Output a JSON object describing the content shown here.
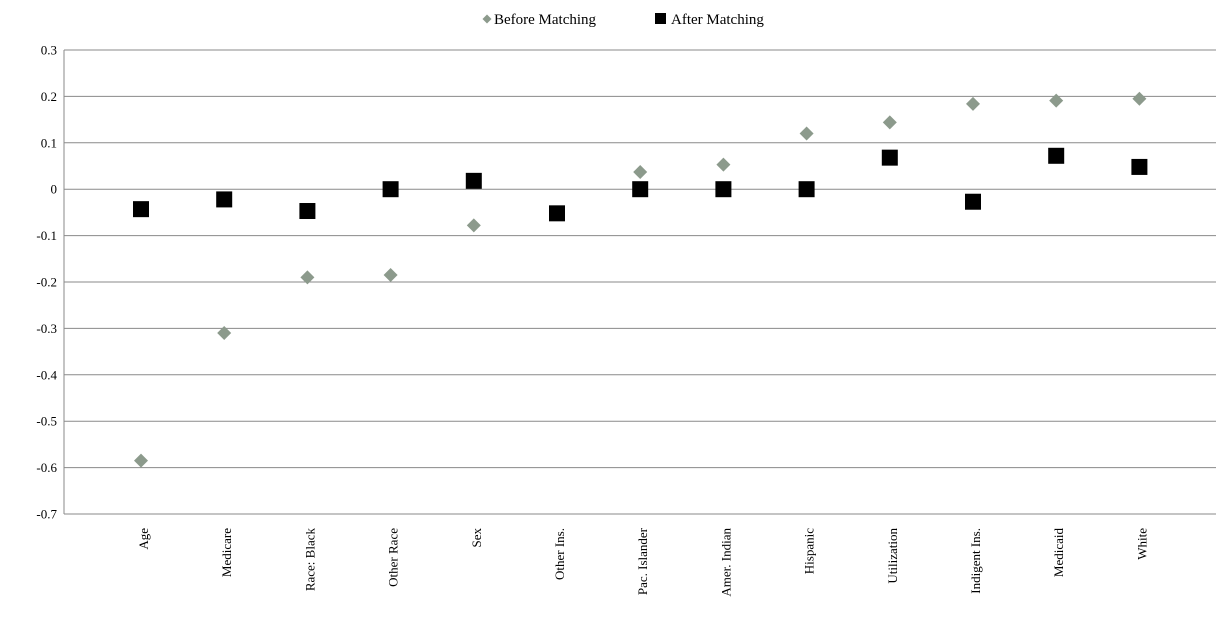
{
  "chart_data": {
    "type": "scatter",
    "categories": [
      "Age",
      "Medicare",
      "Race: Black",
      "Other Race",
      "Sex",
      "Other Ins.",
      "Pac. Islander",
      "Amer. Indian",
      "Hispanic",
      "Utilization",
      "Indigent Ins.",
      "Medicaid",
      "White"
    ],
    "series": [
      {
        "name": "Before Matching",
        "marker": "diamond",
        "color": "#8c9a8c",
        "values": [
          -0.585,
          -0.31,
          -0.19,
          -0.185,
          -0.078,
          null,
          0.037,
          0.053,
          0.12,
          0.144,
          0.184,
          0.191,
          0.195
        ]
      },
      {
        "name": "After Matching",
        "marker": "square",
        "color": "#000000",
        "values": [
          -0.043,
          -0.022,
          -0.047,
          0.0,
          0.018,
          -0.052,
          0.0,
          0.0,
          0.0,
          0.068,
          -0.027,
          0.072,
          0.048
        ]
      }
    ],
    "ylim": [
      -0.7,
      0.3
    ],
    "yticks": [
      "0.3",
      "0.2",
      "0.1",
      "0",
      "-0.1",
      "-0.2",
      "-0.3",
      "-0.4",
      "-0.5",
      "-0.6",
      "-0.7"
    ],
    "grid": true,
    "legend_position": "top-center",
    "title": "",
    "xlabel": "",
    "ylabel": ""
  }
}
